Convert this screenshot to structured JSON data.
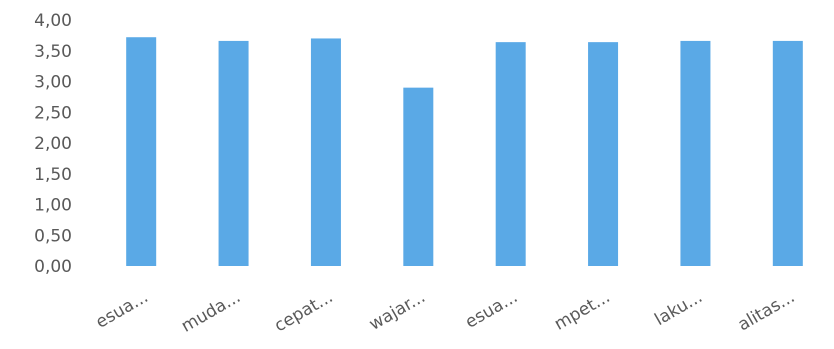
{
  "chart_data": {
    "type": "bar",
    "categories": [
      "esua...",
      "muda...",
      "cepat...",
      "wajar...",
      "esua...",
      "mpet...",
      "laku...",
      "alitas..."
    ],
    "values": [
      3.72,
      3.66,
      3.7,
      2.9,
      3.64,
      3.64,
      3.66,
      3.66
    ],
    "y_ticks": [
      "0,00",
      "0,50",
      "1,00",
      "1,50",
      "2,00",
      "2,50",
      "3,00",
      "3,50",
      "4,00"
    ],
    "ylim": [
      0,
      4
    ],
    "grid": false,
    "bar_color": "#5aa9e6",
    "text_color": "#595959"
  }
}
